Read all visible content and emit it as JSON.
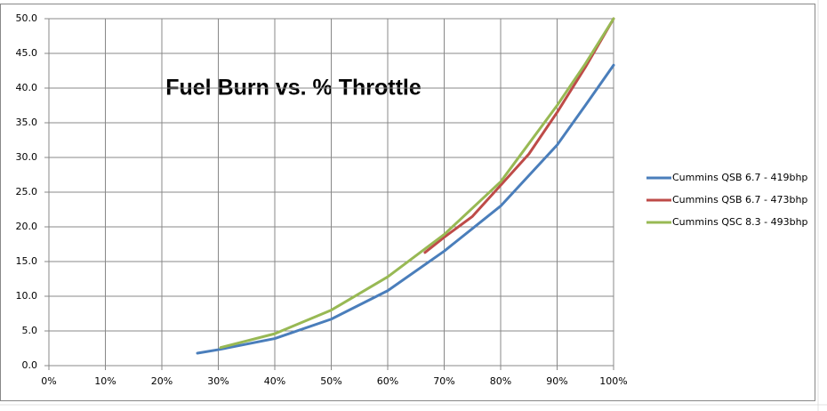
{
  "chart_data": {
    "type": "line",
    "title": "Fuel Burn vs. % Throttle",
    "xlim": [
      0,
      100
    ],
    "xticks": [
      {
        "value": 0,
        "label": "0%"
      },
      {
        "value": 10,
        "label": "10%"
      },
      {
        "value": 20,
        "label": "20%"
      },
      {
        "value": 30,
        "label": "30%"
      },
      {
        "value": 40,
        "label": "40%"
      },
      {
        "value": 50,
        "label": "50%"
      },
      {
        "value": 60,
        "label": "60%"
      },
      {
        "value": 70,
        "label": "70%"
      },
      {
        "value": 80,
        "label": "80%"
      },
      {
        "value": 90,
        "label": "90%"
      },
      {
        "value": 100,
        "label": "100%"
      }
    ],
    "ylim": [
      0,
      50
    ],
    "yticks": [
      {
        "value": 0,
        "label": "0.0"
      },
      {
        "value": 5,
        "label": "5.0"
      },
      {
        "value": 10,
        "label": "10.0"
      },
      {
        "value": 15,
        "label": "15.0"
      },
      {
        "value": 20,
        "label": "20.0"
      },
      {
        "value": 25,
        "label": "25.0"
      },
      {
        "value": 30,
        "label": "30.0"
      },
      {
        "value": 35,
        "label": "35.0"
      },
      {
        "value": 40,
        "label": "40.0"
      },
      {
        "value": 45,
        "label": "45.0"
      },
      {
        "value": 50,
        "label": "50.0"
      }
    ],
    "grid": true,
    "legend": "right",
    "series": [
      {
        "name": "Cummins QSB 6.7 - 419bhp",
        "color": "#4a7ebb",
        "x": [
          26.3,
          30,
          40,
          50,
          60,
          70,
          80,
          90,
          95,
          100
        ],
        "values": [
          1.8,
          2.3,
          3.9,
          6.7,
          10.8,
          16.5,
          23,
          31.8,
          37.5,
          43.3
        ]
      },
      {
        "name": "Cummins QSB 6.7 - 473bhp",
        "color": "#be4b48",
        "x": [
          66.6,
          70,
          75,
          80,
          85,
          90,
          95,
          100
        ],
        "values": [
          16.3,
          18.5,
          21.5,
          26,
          30.5,
          36.5,
          43,
          50
        ]
      },
      {
        "name": "Cummins QSC 8.3 - 493bhp",
        "color": "#98b954",
        "x": [
          30.4,
          40,
          50,
          60,
          70,
          80,
          90,
          95,
          100
        ],
        "values": [
          2.6,
          4.6,
          8,
          12.8,
          18.9,
          26.5,
          37.5,
          43.5,
          50
        ]
      }
    ]
  }
}
